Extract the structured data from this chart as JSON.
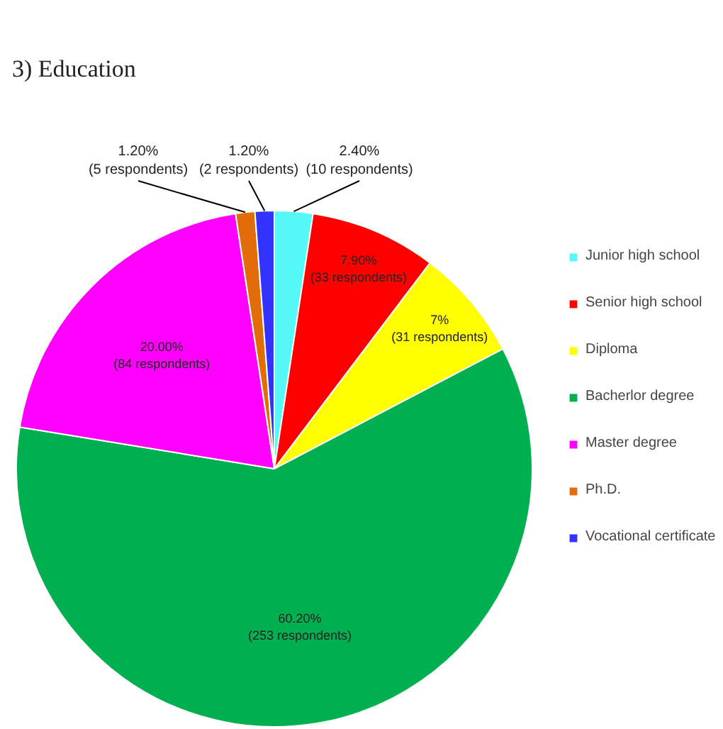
{
  "chart_data": {
    "type": "pie",
    "title": "3)  Education",
    "categories": [
      "Junior high school",
      "Senior high school",
      "Diploma",
      "Bacherlor degree",
      "Master degree",
      "Ph.D.",
      "Vocational certificate"
    ],
    "values": [
      2.4,
      7.9,
      7,
      60.2,
      20.0,
      1.2,
      1.2
    ],
    "value_labels": [
      "2.40%\n(10 respondents)",
      "7.90%\n(33 respondents)",
      "7%\n(31 respondents)",
      "60.20%\n(253 respondents)",
      "20.00%\n(84 respondents)",
      "1.20%\n(5 respondents)",
      "1.20%\n(2 respondents)"
    ],
    "colors": [
      "#55f7f7",
      "#ff0000",
      "#ffff00",
      "#00b050",
      "#ff00ff",
      "#e36c0a",
      "#3333ff"
    ],
    "legend": "right"
  }
}
